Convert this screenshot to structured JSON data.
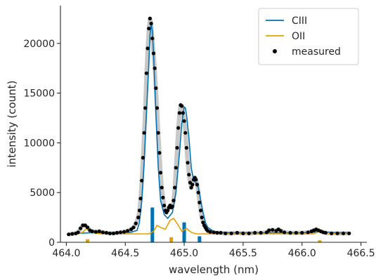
{
  "chart_data": {
    "type": "line",
    "title": "",
    "xlabel": "wavelength (nm)",
    "ylabel": "intensity (count)",
    "xlim": [
      463.95,
      466.55
    ],
    "ylim": [
      0,
      23800
    ],
    "grid": false,
    "legend_placement": "top-right",
    "x_ticks": [
      {
        "value": 464.0,
        "label": "464.0"
      },
      {
        "value": 464.5,
        "label": "464.5"
      },
      {
        "value": 465.0,
        "label": "465.0"
      },
      {
        "value": 465.5,
        "label": "465.5"
      },
      {
        "value": 466.0,
        "label": "466.0"
      },
      {
        "value": 466.5,
        "label": "466.5"
      }
    ],
    "y_ticks": [
      {
        "value": 0,
        "label": "0"
      },
      {
        "value": 5000,
        "label": "5000"
      },
      {
        "value": 10000,
        "label": "10000"
      },
      {
        "value": 15000,
        "label": "15000"
      },
      {
        "value": 20000,
        "label": "20000"
      }
    ],
    "legend": [
      {
        "label": "CIII",
        "kind": "line",
        "color": "#0072b2"
      },
      {
        "label": "OII",
        "kind": "line",
        "color": "#e69f00"
      },
      {
        "label": "measured",
        "kind": "point",
        "color": "#000000"
      }
    ],
    "series": [
      {
        "name": "CIII",
        "kind": "line",
        "color": "#0072b2",
        "x": [
          464.02,
          464.1,
          464.2,
          464.3,
          464.4,
          464.5,
          464.55,
          464.6,
          464.62,
          464.64,
          464.66,
          464.68,
          464.7,
          464.71,
          464.72,
          464.73,
          464.74,
          464.76,
          464.78,
          464.8,
          464.83,
          464.86,
          464.9,
          464.93,
          464.96,
          464.98,
          465.0,
          465.01,
          465.02,
          465.04,
          465.06,
          465.08,
          465.1,
          465.12,
          465.14,
          465.16,
          465.18,
          465.2,
          465.25,
          465.3,
          465.4,
          465.5,
          465.6,
          465.7,
          465.8,
          465.9,
          466.0,
          466.1,
          466.15,
          466.2,
          466.3,
          466.4
        ],
        "y": [
          850,
          900,
          950,
          950,
          950,
          980,
          1000,
          1200,
          2000,
          4200,
          8000,
          13000,
          18000,
          20800,
          22000,
          21200,
          19000,
          13000,
          7500,
          4200,
          2800,
          2400,
          3000,
          5000,
          9000,
          12000,
          13600,
          13500,
          12800,
          10500,
          7500,
          6200,
          6000,
          5500,
          4200,
          3000,
          2000,
          1500,
          1100,
          1000,
          950,
          950,
          950,
          950,
          950,
          950,
          950,
          1000,
          1150,
          1000,
          950,
          950
        ]
      },
      {
        "name": "OII",
        "kind": "line",
        "color": "#e69f00",
        "x": [
          464.02,
          464.1,
          464.14,
          464.17,
          464.2,
          464.25,
          464.3,
          464.4,
          464.5,
          464.6,
          464.7,
          464.74,
          464.77,
          464.8,
          464.84,
          464.88,
          464.91,
          464.94,
          464.98,
          465.02,
          465.06,
          465.1,
          465.2,
          465.3,
          465.4,
          465.5,
          465.6,
          465.7,
          465.8,
          465.9,
          466.0,
          466.1,
          466.13,
          466.16,
          466.2,
          466.3,
          466.4
        ],
        "y": [
          850,
          850,
          1000,
          1400,
          1100,
          900,
          850,
          850,
          850,
          850,
          850,
          1100,
          1700,
          1500,
          1300,
          2200,
          2400,
          1900,
          1100,
          1400,
          1000,
          850,
          850,
          850,
          850,
          850,
          850,
          850,
          850,
          850,
          850,
          850,
          1000,
          1200,
          950,
          850,
          850
        ]
      },
      {
        "name": "measured",
        "kind": "scatter",
        "color": "#000000",
        "x": [
          464.02,
          464.05,
          464.08,
          464.1,
          464.12,
          464.14,
          464.16,
          464.18,
          464.2,
          464.22,
          464.25,
          464.28,
          464.31,
          464.34,
          464.37,
          464.4,
          464.43,
          464.46,
          464.49,
          464.52,
          464.55,
          464.57,
          464.59,
          464.61,
          464.62,
          464.63,
          464.64,
          464.65,
          464.66,
          464.67,
          464.68,
          464.69,
          464.7,
          464.71,
          464.72,
          464.73,
          464.74,
          464.75,
          464.76,
          464.77,
          464.78,
          464.79,
          464.8,
          464.81,
          464.82,
          464.83,
          464.84,
          464.85,
          464.86,
          464.87,
          464.88,
          464.89,
          464.9,
          464.91,
          464.92,
          464.93,
          464.94,
          464.95,
          464.96,
          464.97,
          464.98,
          464.99,
          465.0,
          465.01,
          465.02,
          465.03,
          465.04,
          465.05,
          465.06,
          465.07,
          465.08,
          465.09,
          465.1,
          465.11,
          465.12,
          465.13,
          465.14,
          465.15,
          465.16,
          465.17,
          465.18,
          465.19,
          465.2,
          465.22,
          465.25,
          465.28,
          465.31,
          465.35,
          465.4,
          465.45,
          465.5,
          465.55,
          465.6,
          465.65,
          465.7,
          465.72,
          465.75,
          465.78,
          465.8,
          465.82,
          465.85,
          465.9,
          465.95,
          466.0,
          466.05,
          466.08,
          466.1,
          466.12,
          466.14,
          466.16,
          466.18,
          466.2,
          466.25,
          466.3,
          466.35,
          466.4
        ],
        "y": [
          800,
          850,
          900,
          1000,
          1400,
          1700,
          1700,
          1500,
          1200,
          1100,
          1050,
          1100,
          1000,
          950,
          900,
          900,
          950,
          1000,
          1050,
          1150,
          1300,
          1500,
          1900,
          2500,
          3200,
          4400,
          6200,
          8500,
          11000,
          13500,
          17000,
          19500,
          21500,
          22500,
          22000,
          20500,
          19000,
          17500,
          15500,
          13500,
          11000,
          9000,
          7000,
          5500,
          4500,
          3700,
          3200,
          3000,
          3200,
          3500,
          3700,
          3500,
          3600,
          4200,
          5500,
          7500,
          9500,
          11500,
          13000,
          13800,
          13700,
          13000,
          12200,
          11000,
          9500,
          8000,
          6800,
          6000,
          5500,
          5800,
          6300,
          6500,
          6300,
          5800,
          5000,
          4000,
          3200,
          2500,
          2000,
          1700,
          1500,
          1300,
          1150,
          1050,
          1000,
          950,
          950,
          900,
          900,
          950,
          900,
          900,
          950,
          950,
          1000,
          1200,
          1250,
          1150,
          1300,
          1150,
          1000,
          950,
          950,
          950,
          1000,
          1100,
          1200,
          1300,
          1200,
          1100,
          1000,
          950,
          900,
          900,
          900,
          900
        ]
      },
      {
        "name": "CIII",
        "kind": "bars",
        "color": "#0072b2",
        "x": [
          464.73,
          465.0,
          465.13
        ],
        "y": [
          3500,
          2000,
          600
        ]
      },
      {
        "name": "OII",
        "kind": "bars",
        "color": "#e69f00",
        "x": [
          464.18,
          464.89,
          466.15
        ],
        "y": [
          300,
          500,
          200
        ]
      }
    ]
  }
}
